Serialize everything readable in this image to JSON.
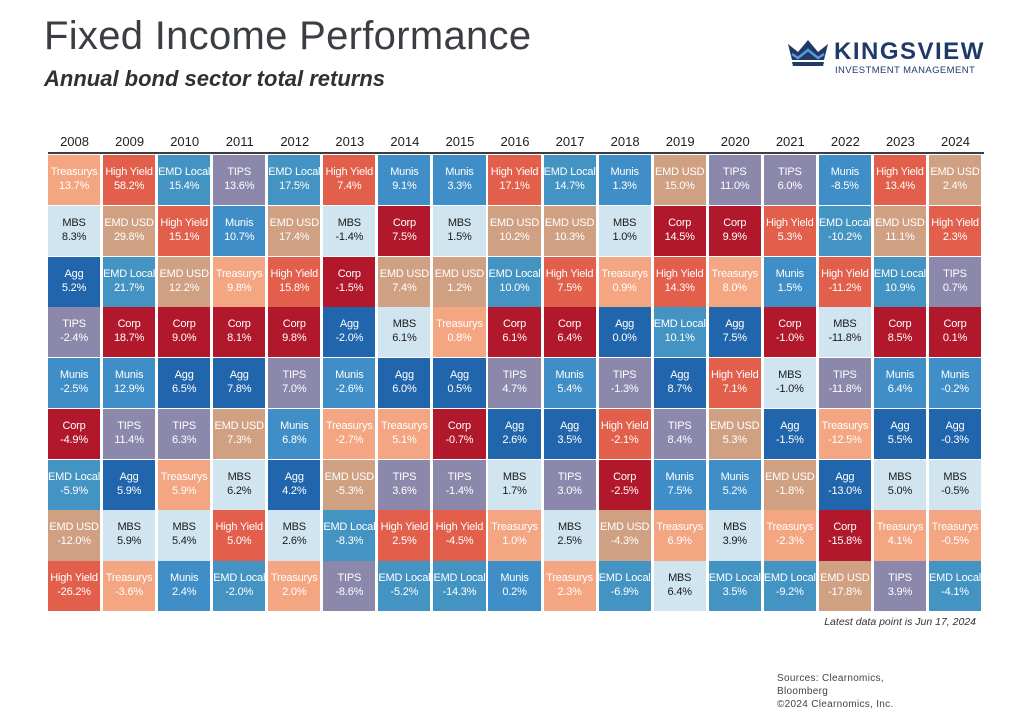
{
  "header": {
    "title": "Fixed Income Performance",
    "subtitle": "Annual bond sector total returns"
  },
  "logo": {
    "name": "KINGSVIEW",
    "tagline": "INVESTMENT MANAGEMENT",
    "color": "#1f3a68"
  },
  "footer": {
    "note": "Latest data point is Jun 17, 2024",
    "sources_line1": "Sources: Clearnomics,",
    "sources_line2": "Bloomberg",
    "copyright": "©2024 Clearnomics, Inc."
  },
  "chart_data": {
    "type": "table",
    "title": "Fixed Income Performance",
    "subtitle": "Annual bond sector total returns",
    "sector_colors": {
      "Treasurys": "#f4a582",
      "High Yield": "#e25f4b",
      "EMD Local": "#4393c3",
      "TIPS": "#8b88ab",
      "Munis": "#3f8ec7",
      "MBS": "#d1e5f0",
      "EMD USD": "#d0a083",
      "Agg": "#2166ac",
      "Corp": "#b2182b"
    },
    "dark_text_sectors": [
      "MBS"
    ],
    "columns": [
      {
        "year": "2008",
        "cells": [
          [
            "Treasurys",
            "13.7%"
          ],
          [
            "MBS",
            "8.3%"
          ],
          [
            "Agg",
            "5.2%"
          ],
          [
            "TIPS",
            "-2.4%"
          ],
          [
            "Munis",
            "-2.5%"
          ],
          [
            "Corp",
            "-4.9%"
          ],
          [
            "EMD Local",
            "-5.9%"
          ],
          [
            "EMD USD",
            "-12.0%"
          ],
          [
            "High Yield",
            "-26.2%"
          ]
        ]
      },
      {
        "year": "2009",
        "cells": [
          [
            "High Yield",
            "58.2%"
          ],
          [
            "EMD USD",
            "29.8%"
          ],
          [
            "EMD Local",
            "21.7%"
          ],
          [
            "Corp",
            "18.7%"
          ],
          [
            "Munis",
            "12.9%"
          ],
          [
            "TIPS",
            "11.4%"
          ],
          [
            "Agg",
            "5.9%"
          ],
          [
            "MBS",
            "5.9%"
          ],
          [
            "Treasurys",
            "-3.6%"
          ]
        ]
      },
      {
        "year": "2010",
        "cells": [
          [
            "EMD Local",
            "15.4%"
          ],
          [
            "High Yield",
            "15.1%"
          ],
          [
            "EMD USD",
            "12.2%"
          ],
          [
            "Corp",
            "9.0%"
          ],
          [
            "Agg",
            "6.5%"
          ],
          [
            "TIPS",
            "6.3%"
          ],
          [
            "Treasurys",
            "5.9%"
          ],
          [
            "MBS",
            "5.4%"
          ],
          [
            "Munis",
            "2.4%"
          ]
        ]
      },
      {
        "year": "2011",
        "cells": [
          [
            "TIPS",
            "13.6%"
          ],
          [
            "Munis",
            "10.7%"
          ],
          [
            "Treasurys",
            "9.8%"
          ],
          [
            "Corp",
            "8.1%"
          ],
          [
            "Agg",
            "7.8%"
          ],
          [
            "EMD USD",
            "7.3%"
          ],
          [
            "MBS",
            "6.2%"
          ],
          [
            "High Yield",
            "5.0%"
          ],
          [
            "EMD Local",
            "-2.0%"
          ]
        ]
      },
      {
        "year": "2012",
        "cells": [
          [
            "EMD Local",
            "17.5%"
          ],
          [
            "EMD USD",
            "17.4%"
          ],
          [
            "High Yield",
            "15.8%"
          ],
          [
            "Corp",
            "9.8%"
          ],
          [
            "TIPS",
            "7.0%"
          ],
          [
            "Munis",
            "6.8%"
          ],
          [
            "Agg",
            "4.2%"
          ],
          [
            "MBS",
            "2.6%"
          ],
          [
            "Treasurys",
            "2.0%"
          ]
        ]
      },
      {
        "year": "2013",
        "cells": [
          [
            "High Yield",
            "7.4%"
          ],
          [
            "MBS",
            "-1.4%"
          ],
          [
            "Corp",
            "-1.5%"
          ],
          [
            "Agg",
            "-2.0%"
          ],
          [
            "Munis",
            "-2.6%"
          ],
          [
            "Treasurys",
            "-2.7%"
          ],
          [
            "EMD USD",
            "-5.3%"
          ],
          [
            "EMD Local",
            "-8.3%"
          ],
          [
            "TIPS",
            "-8.6%"
          ]
        ]
      },
      {
        "year": "2014",
        "cells": [
          [
            "Munis",
            "9.1%"
          ],
          [
            "Corp",
            "7.5%"
          ],
          [
            "EMD USD",
            "7.4%"
          ],
          [
            "MBS",
            "6.1%"
          ],
          [
            "Agg",
            "6.0%"
          ],
          [
            "Treasurys",
            "5.1%"
          ],
          [
            "TIPS",
            "3.6%"
          ],
          [
            "High Yield",
            "2.5%"
          ],
          [
            "EMD Local",
            "-5.2%"
          ]
        ]
      },
      {
        "year": "2015",
        "cells": [
          [
            "Munis",
            "3.3%"
          ],
          [
            "MBS",
            "1.5%"
          ],
          [
            "EMD USD",
            "1.2%"
          ],
          [
            "Treasurys",
            "0.8%"
          ],
          [
            "Agg",
            "0.5%"
          ],
          [
            "Corp",
            "-0.7%"
          ],
          [
            "TIPS",
            "-1.4%"
          ],
          [
            "High Yield",
            "-4.5%"
          ],
          [
            "EMD Local",
            "-14.3%"
          ]
        ]
      },
      {
        "year": "2016",
        "cells": [
          [
            "High Yield",
            "17.1%"
          ],
          [
            "EMD USD",
            "10.2%"
          ],
          [
            "EMD Local",
            "10.0%"
          ],
          [
            "Corp",
            "6.1%"
          ],
          [
            "TIPS",
            "4.7%"
          ],
          [
            "Agg",
            "2.6%"
          ],
          [
            "MBS",
            "1.7%"
          ],
          [
            "Treasurys",
            "1.0%"
          ],
          [
            "Munis",
            "0.2%"
          ]
        ]
      },
      {
        "year": "2017",
        "cells": [
          [
            "EMD Local",
            "14.7%"
          ],
          [
            "EMD USD",
            "10.3%"
          ],
          [
            "High Yield",
            "7.5%"
          ],
          [
            "Corp",
            "6.4%"
          ],
          [
            "Munis",
            "5.4%"
          ],
          [
            "Agg",
            "3.5%"
          ],
          [
            "TIPS",
            "3.0%"
          ],
          [
            "MBS",
            "2.5%"
          ],
          [
            "Treasurys",
            "2.3%"
          ]
        ]
      },
      {
        "year": "2018",
        "cells": [
          [
            "Munis",
            "1.3%"
          ],
          [
            "MBS",
            "1.0%"
          ],
          [
            "Treasurys",
            "0.9%"
          ],
          [
            "Agg",
            "0.0%"
          ],
          [
            "TIPS",
            "-1.3%"
          ],
          [
            "High Yield",
            "-2.1%"
          ],
          [
            "Corp",
            "-2.5%"
          ],
          [
            "EMD USD",
            "-4.3%"
          ],
          [
            "EMD Local",
            "-6.9%"
          ]
        ]
      },
      {
        "year": "2019",
        "cells": [
          [
            "EMD USD",
            "15.0%"
          ],
          [
            "Corp",
            "14.5%"
          ],
          [
            "High Yield",
            "14.3%"
          ],
          [
            "EMD Local",
            "10.1%"
          ],
          [
            "Agg",
            "8.7%"
          ],
          [
            "TIPS",
            "8.4%"
          ],
          [
            "Munis",
            "7.5%"
          ],
          [
            "Treasurys",
            "6.9%"
          ],
          [
            "MBS",
            "6.4%"
          ]
        ]
      },
      {
        "year": "2020",
        "cells": [
          [
            "TIPS",
            "11.0%"
          ],
          [
            "Corp",
            "9.9%"
          ],
          [
            "Treasurys",
            "8.0%"
          ],
          [
            "Agg",
            "7.5%"
          ],
          [
            "High Yield",
            "7.1%"
          ],
          [
            "EMD USD",
            "5.3%"
          ],
          [
            "Munis",
            "5.2%"
          ],
          [
            "MBS",
            "3.9%"
          ],
          [
            "EMD Local",
            "3.5%"
          ]
        ]
      },
      {
        "year": "2021",
        "cells": [
          [
            "TIPS",
            "6.0%"
          ],
          [
            "High Yield",
            "5.3%"
          ],
          [
            "Munis",
            "1.5%"
          ],
          [
            "Corp",
            "-1.0%"
          ],
          [
            "MBS",
            "-1.0%"
          ],
          [
            "Agg",
            "-1.5%"
          ],
          [
            "EMD USD",
            "-1.8%"
          ],
          [
            "Treasurys",
            "-2.3%"
          ],
          [
            "EMD Local",
            "-9.2%"
          ]
        ]
      },
      {
        "year": "2022",
        "cells": [
          [
            "Munis",
            "-8.5%"
          ],
          [
            "EMD Local",
            "-10.2%"
          ],
          [
            "High Yield",
            "-11.2%"
          ],
          [
            "MBS",
            "-11.8%"
          ],
          [
            "TIPS",
            "-11.8%"
          ],
          [
            "Treasurys",
            "-12.5%"
          ],
          [
            "Agg",
            "-13.0%"
          ],
          [
            "Corp",
            "-15.8%"
          ],
          [
            "EMD USD",
            "-17.8%"
          ]
        ]
      },
      {
        "year": "2023",
        "cells": [
          [
            "High Yield",
            "13.4%"
          ],
          [
            "EMD USD",
            "11.1%"
          ],
          [
            "EMD Local",
            "10.9%"
          ],
          [
            "Corp",
            "8.5%"
          ],
          [
            "Munis",
            "6.4%"
          ],
          [
            "Agg",
            "5.5%"
          ],
          [
            "MBS",
            "5.0%"
          ],
          [
            "Treasurys",
            "4.1%"
          ],
          [
            "TIPS",
            "3.9%"
          ]
        ]
      },
      {
        "year": "2024",
        "cells": [
          [
            "EMD USD",
            "2.4%"
          ],
          [
            "High Yield",
            "2.3%"
          ],
          [
            "TIPS",
            "0.7%"
          ],
          [
            "Corp",
            "0.1%"
          ],
          [
            "Munis",
            "-0.2%"
          ],
          [
            "Agg",
            "-0.3%"
          ],
          [
            "MBS",
            "-0.5%"
          ],
          [
            "Treasurys",
            "-0.5%"
          ],
          [
            "EMD Local",
            "-4.1%"
          ]
        ]
      }
    ]
  }
}
